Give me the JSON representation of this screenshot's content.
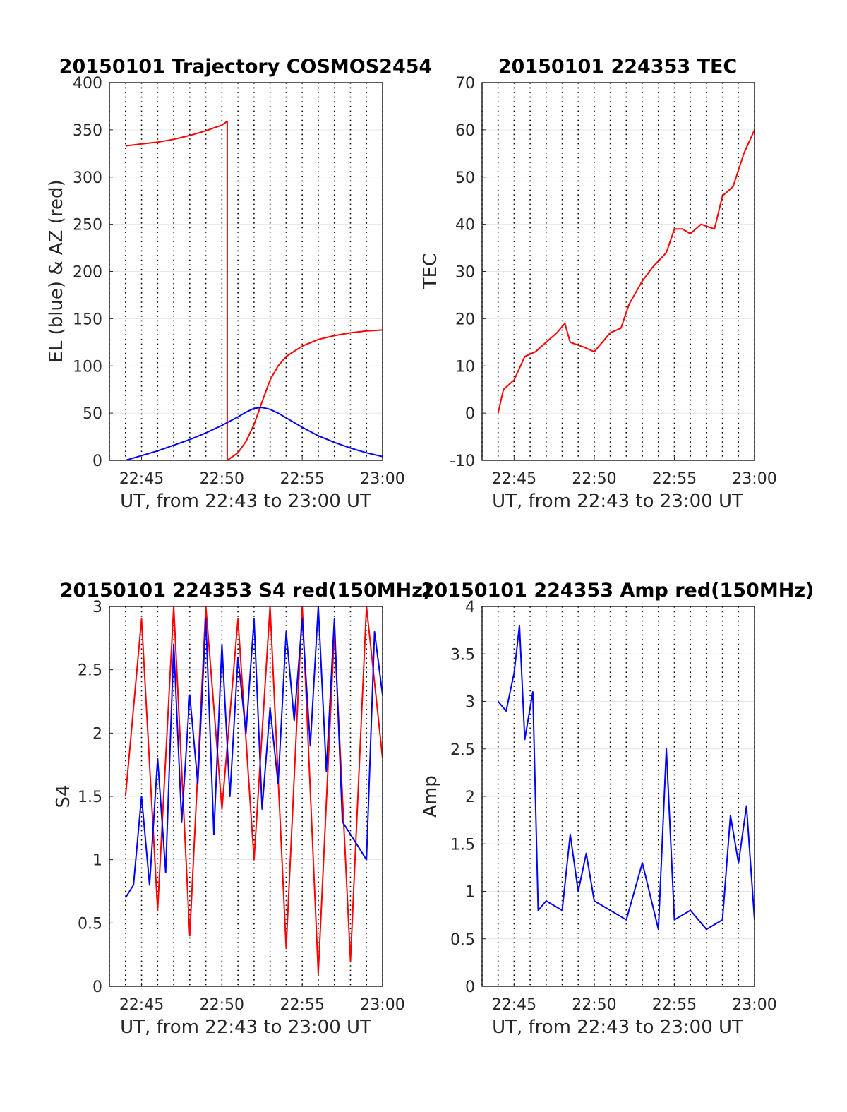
{
  "chart_data": [
    {
      "type": "line",
      "title": "20150101 Trajectory COSMOS2454",
      "xlabel": "UT, from 22:43 to 23:00 UT",
      "ylabel": "EL (blue) & AZ (red)",
      "xlim": [
        "22:43",
        "23:00"
      ],
      "ylim": [
        0,
        400
      ],
      "xticks": [
        "22:45",
        "22:50",
        "22:55",
        "23:00"
      ],
      "yticks": [
        "0",
        "50",
        "100",
        "150",
        "200",
        "250",
        "300",
        "350",
        "400"
      ],
      "grid": true,
      "series": [
        {
          "color": "#ff0000",
          "x": [
            "22:44",
            "22:45",
            "22:46",
            "22:47",
            "22:48",
            "22:49",
            "22:50",
            "22:50:20",
            "22:50:20",
            "22:51",
            "22:51:30",
            "22:52",
            "22:52:30",
            "22:53",
            "22:53:30",
            "22:54",
            "22:55",
            "22:56",
            "22:57",
            "22:58",
            "22:59",
            "23:00"
          ],
          "values": [
            333,
            335,
            337,
            340,
            344,
            349,
            355,
            359,
            0,
            8,
            20,
            38,
            62,
            85,
            100,
            110,
            121,
            128,
            132,
            135,
            137,
            138
          ]
        },
        {
          "color": "#0000ff",
          "x": [
            "22:44",
            "22:45",
            "22:46",
            "22:47",
            "22:48",
            "22:49",
            "22:50",
            "22:51",
            "22:51:30",
            "22:52",
            "22:52:30",
            "22:53",
            "22:53:30",
            "22:54",
            "22:55",
            "22:56",
            "22:57",
            "22:58",
            "22:59",
            "23:00"
          ],
          "values": [
            0,
            5,
            10,
            16,
            22,
            29,
            37,
            46,
            51,
            55,
            56,
            54,
            50,
            45,
            35,
            26,
            19,
            13,
            8,
            4
          ]
        }
      ]
    },
    {
      "type": "line",
      "title": "20150101 224353 TEC",
      "xlabel": "UT, from 22:43 to 23:00 UT",
      "ylabel": "TEC",
      "xlim": [
        "22:43",
        "23:00"
      ],
      "ylim": [
        -10,
        70
      ],
      "xticks": [
        "22:45",
        "22:50",
        "22:55",
        "23:00"
      ],
      "yticks": [
        "-10",
        "0",
        "10",
        "20",
        "30",
        "40",
        "50",
        "60",
        "70"
      ],
      "grid": true,
      "series": [
        {
          "color": "#ff0000",
          "x": [
            "22:44",
            "22:44:20",
            "22:45",
            "22:45:40",
            "22:46:20",
            "22:47",
            "22:47:40",
            "22:48:10",
            "22:48:30",
            "22:49:20",
            "22:50",
            "22:50:30",
            "22:51",
            "22:51:40",
            "22:52:10",
            "22:53",
            "22:53:40",
            "22:54:30",
            "22:55",
            "22:55:30",
            "22:56",
            "22:56:40",
            "22:57:30",
            "22:58",
            "22:58:40",
            "22:59:20",
            "23:00"
          ],
          "values": [
            0,
            5,
            7,
            12,
            13,
            15,
            17,
            19,
            15,
            14,
            13,
            15,
            17,
            18,
            23,
            28,
            31,
            34,
            39,
            39,
            38,
            40,
            39,
            46,
            48,
            55,
            60
          ]
        }
      ]
    },
    {
      "type": "line",
      "title": "20150101 224353 S4 red(150MHz)",
      "xlabel": "UT, from 22:43 to 23:00 UT",
      "ylabel": "S4",
      "xlim": [
        "22:43",
        "23:00"
      ],
      "ylim": [
        0,
        3
      ],
      "xticks": [
        "22:45",
        "22:50",
        "22:55",
        "23:00"
      ],
      "yticks": [
        "0",
        "0.5",
        "1",
        "1.5",
        "2",
        "2.5",
        "3"
      ],
      "grid": true,
      "series": [
        {
          "color": "#ff0000",
          "x": [
            "22:44",
            "22:45",
            "22:46",
            "22:47",
            "22:48",
            "22:49",
            "22:50",
            "22:51",
            "22:52",
            "22:53",
            "22:54",
            "22:55",
            "22:56",
            "22:57",
            "22:58",
            "22:59",
            "23:00"
          ],
          "values": [
            1.5,
            2.9,
            0.6,
            3,
            0.4,
            3,
            1.4,
            2.9,
            1.0,
            3,
            0.3,
            3,
            0.1,
            2.8,
            0.2,
            3,
            1.8
          ]
        },
        {
          "color": "#0000ff",
          "x": [
            "22:44",
            "22:44:30",
            "22:45",
            "22:45:30",
            "22:46",
            "22:46:30",
            "22:47",
            "22:47:30",
            "22:48",
            "22:48:30",
            "22:49",
            "22:49:30",
            "22:50",
            "22:50:30",
            "22:51",
            "22:51:30",
            "22:52",
            "22:52:30",
            "22:53",
            "22:53:30",
            "22:54",
            "22:54:30",
            "22:55",
            "22:55:30",
            "22:56",
            "22:56:30",
            "22:57",
            "22:57:30",
            "22:58",
            "22:58:30",
            "22:59",
            "22:59:30",
            "23:00"
          ],
          "values": [
            0.7,
            0.8,
            1.5,
            0.8,
            1.8,
            0.9,
            2.7,
            1.3,
            2.3,
            1.6,
            2.9,
            1.2,
            2.7,
            1.5,
            2.6,
            2.0,
            2.9,
            1.4,
            2.2,
            1.6,
            2.8,
            2.1,
            2.9,
            1.9,
            3.0,
            1.7,
            2.9,
            1.3,
            1.2,
            1.1,
            1.0,
            2.8,
            2.3
          ]
        }
      ]
    },
    {
      "type": "line",
      "title": "20150101 224353 Amp red(150MHz)",
      "xlabel": "UT, from 22:43 to 23:00 UT",
      "ylabel": "Amp",
      "xlim": [
        "22:43",
        "23:00"
      ],
      "ylim": [
        0,
        4
      ],
      "xticks": [
        "22:45",
        "22:50",
        "22:55",
        "23:00"
      ],
      "yticks": [
        "0",
        "0.5",
        "1",
        "1.5",
        "2",
        "2.5",
        "3",
        "3.5",
        "4"
      ],
      "grid": true,
      "series": [
        {
          "color": "#0000ff",
          "x": [
            "22:44",
            "22:44:30",
            "22:45",
            "22:45:20",
            "22:45:40",
            "22:46:10",
            "22:46:30",
            "22:47",
            "22:48",
            "22:48:30",
            "22:49",
            "22:49:30",
            "22:50",
            "22:51",
            "22:52",
            "22:53",
            "22:54",
            "22:54:30",
            "22:55",
            "22:56",
            "22:57",
            "22:58",
            "22:58:30",
            "22:59",
            "22:59:30",
            "23:00"
          ],
          "values": [
            3.0,
            2.9,
            3.3,
            3.8,
            2.6,
            3.1,
            0.8,
            0.9,
            0.8,
            1.6,
            1.0,
            1.4,
            0.9,
            0.8,
            0.7,
            1.3,
            0.6,
            2.5,
            0.7,
            0.8,
            0.6,
            0.7,
            1.8,
            1.3,
            1.9,
            0.7
          ]
        }
      ]
    }
  ]
}
